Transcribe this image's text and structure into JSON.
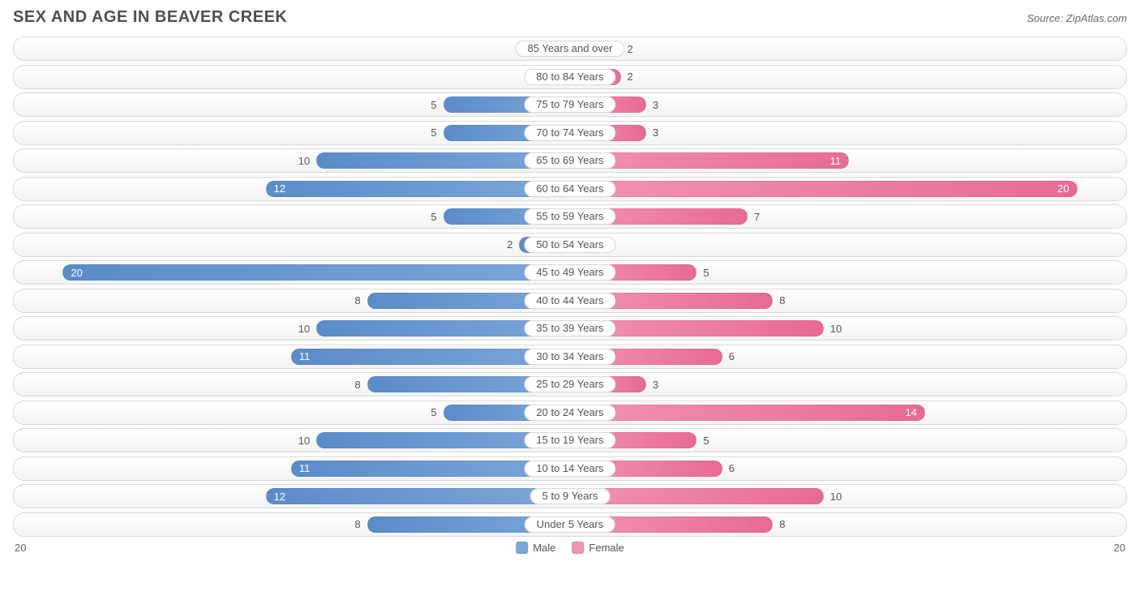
{
  "title": "SEX AND AGE IN BEAVER CREEK",
  "source": "Source: ZipAtlas.com",
  "chart": {
    "type": "population-pyramid",
    "male_color": "#7ba7d9",
    "male_color_dark": "#5a8cc9",
    "female_color": "#f193b2",
    "female_color_dark": "#e76a96",
    "row_bg_top": "#ffffff",
    "row_bg_bottom": "#f3f3f3",
    "row_border": "#d9d9d9",
    "text_color": "#555555",
    "axis_max": 20,
    "axis_label_left": "20",
    "axis_label_right": "20",
    "inside_threshold": 11,
    "categories": [
      {
        "label": "85 Years and over",
        "male": 0,
        "female": 2
      },
      {
        "label": "80 to 84 Years",
        "male": 1,
        "female": 2
      },
      {
        "label": "75 to 79 Years",
        "male": 5,
        "female": 3
      },
      {
        "label": "70 to 74 Years",
        "male": 5,
        "female": 3
      },
      {
        "label": "65 to 69 Years",
        "male": 10,
        "female": 11
      },
      {
        "label": "60 to 64 Years",
        "male": 12,
        "female": 20
      },
      {
        "label": "55 to 59 Years",
        "male": 5,
        "female": 7
      },
      {
        "label": "50 to 54 Years",
        "male": 2,
        "female": 0
      },
      {
        "label": "45 to 49 Years",
        "male": 20,
        "female": 5
      },
      {
        "label": "40 to 44 Years",
        "male": 8,
        "female": 8
      },
      {
        "label": "35 to 39 Years",
        "male": 10,
        "female": 10
      },
      {
        "label": "30 to 34 Years",
        "male": 11,
        "female": 6
      },
      {
        "label": "25 to 29 Years",
        "male": 8,
        "female": 3
      },
      {
        "label": "20 to 24 Years",
        "male": 5,
        "female": 14
      },
      {
        "label": "15 to 19 Years",
        "male": 10,
        "female": 5
      },
      {
        "label": "10 to 14 Years",
        "male": 11,
        "female": 6
      },
      {
        "label": "5 to 9 Years",
        "male": 12,
        "female": 10
      },
      {
        "label": "Under 5 Years",
        "male": 8,
        "female": 8
      }
    ],
    "legend": {
      "male": "Male",
      "female": "Female"
    }
  }
}
